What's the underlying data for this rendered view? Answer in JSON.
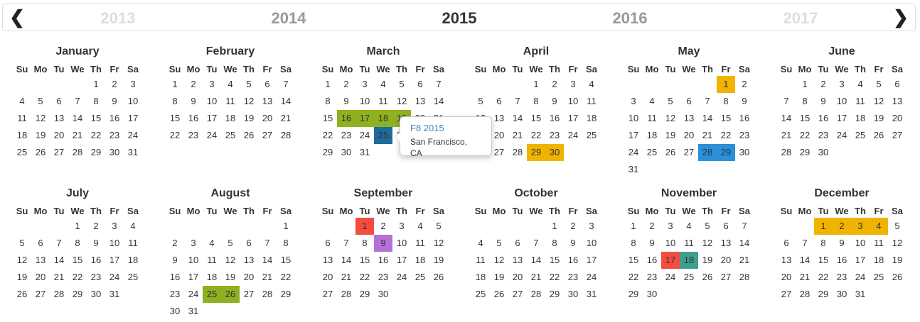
{
  "nav": {
    "prev_icon": "chevron-left-icon",
    "next_icon": "chevron-right-icon",
    "prev_symbol": "❮",
    "next_symbol": "❯",
    "years": [
      {
        "label": "2013",
        "color": "#dddddd"
      },
      {
        "label": "2014",
        "color": "#999999"
      },
      {
        "label": "2015",
        "color": "#333333"
      },
      {
        "label": "2016",
        "color": "#999999"
      },
      {
        "label": "2017",
        "color": "#dddddd"
      }
    ]
  },
  "weekdays": [
    "Su",
    "Mo",
    "Tu",
    "We",
    "Th",
    "Fr",
    "Sa"
  ],
  "colors": {
    "green": "#8eb021",
    "yellow": "#f0b400",
    "blue": "#2b90d9",
    "red": "#f54d3d",
    "purple": "#b571d9",
    "teal": "#3f9e8f",
    "darkblue": "#1f6b9a"
  },
  "months": [
    {
      "name": "January",
      "start": 4,
      "days": 31,
      "events": []
    },
    {
      "name": "February",
      "start": 0,
      "days": 28,
      "events": []
    },
    {
      "name": "March",
      "start": 0,
      "days": 31,
      "events": [
        {
          "days": [
            16,
            17,
            18,
            19
          ],
          "color": "green"
        },
        {
          "days": [
            25
          ],
          "color": "darkblue"
        }
      ]
    },
    {
      "name": "April",
      "start": 3,
      "days": 30,
      "events": [
        {
          "days": [
            29,
            30
          ],
          "color": "yellow"
        }
      ]
    },
    {
      "name": "May",
      "start": 5,
      "days": 31,
      "events": [
        {
          "days": [
            1
          ],
          "color": "yellow"
        },
        {
          "days": [
            28,
            29
          ],
          "color": "blue"
        }
      ]
    },
    {
      "name": "June",
      "start": 1,
      "days": 30,
      "events": []
    },
    {
      "name": "July",
      "start": 3,
      "days": 31,
      "events": []
    },
    {
      "name": "August",
      "start": 6,
      "days": 31,
      "events": [
        {
          "days": [
            25,
            26
          ],
          "color": "green"
        }
      ]
    },
    {
      "name": "September",
      "start": 2,
      "days": 30,
      "events": [
        {
          "days": [
            1
          ],
          "color": "red"
        },
        {
          "days": [
            9
          ],
          "color": "purple"
        }
      ]
    },
    {
      "name": "October",
      "start": 4,
      "days": 31,
      "events": []
    },
    {
      "name": "November",
      "start": 0,
      "days": 30,
      "events": [
        {
          "days": [
            17
          ],
          "color": "red"
        },
        {
          "days": [
            18
          ],
          "color": "teal"
        }
      ]
    },
    {
      "name": "December",
      "start": 2,
      "days": 31,
      "events": [
        {
          "days": [
            1,
            2,
            3,
            4
          ],
          "color": "yellow"
        }
      ]
    }
  ],
  "tooltip": {
    "title": "F8 2015",
    "location": "San Francisco, CA"
  }
}
